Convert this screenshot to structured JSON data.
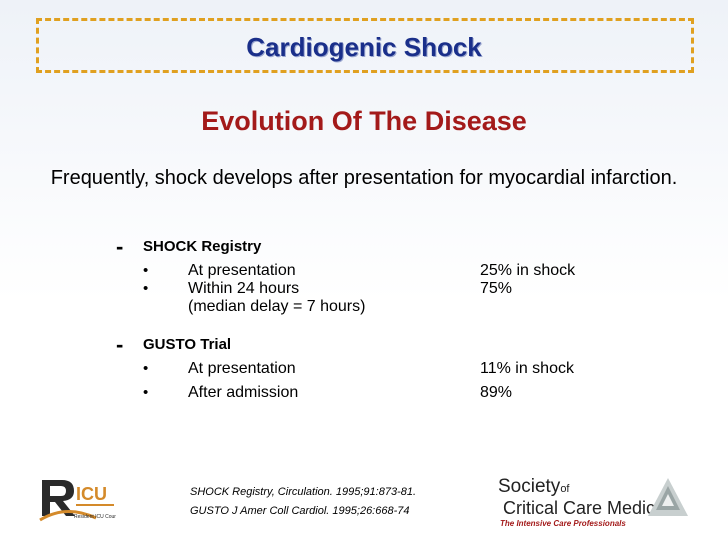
{
  "title": "Cardiogenic Shock",
  "subtitle": "Evolution Of The Disease",
  "intro": "Frequently, shock develops after presentation for myocardial infarction.",
  "sections": [
    {
      "dash": "-",
      "heading": "SHOCK Registry",
      "rows": [
        {
          "bullet": "•",
          "label": "At presentation",
          "value": "25% in shock"
        },
        {
          "bullet": "•",
          "label": "Within 24 hours",
          "value": "75%"
        },
        {
          "bullet": "",
          "label": "(median delay = 7 hours)",
          "value": ""
        }
      ]
    },
    {
      "dash": "-",
      "heading": "GUSTO Trial",
      "rows": [
        {
          "bullet": "•",
          "label": "At presentation",
          "value": "11% in shock"
        },
        {
          "bullet": "•",
          "label": "After admission",
          "value": "89%"
        }
      ]
    }
  ],
  "references": [
    "SHOCK Registry, Circulation. 1995;91:873-81.",
    "GUSTO J Amer Coll Cardiol. 1995;26:668-74"
  ],
  "logo_left": {
    "name": "icu-logo",
    "text_main": "ICU",
    "text_sub": "Resident ICU Course"
  },
  "logo_right": {
    "society": "Society",
    "of": "of",
    "critical": "Critical Care Medicine",
    "tagline": "The Intensive Care Professionals"
  },
  "colors": {
    "title": "#1a2f8a",
    "subtitle": "#a31a1a",
    "border": "#e0a020",
    "tagline": "#a31a1a"
  }
}
